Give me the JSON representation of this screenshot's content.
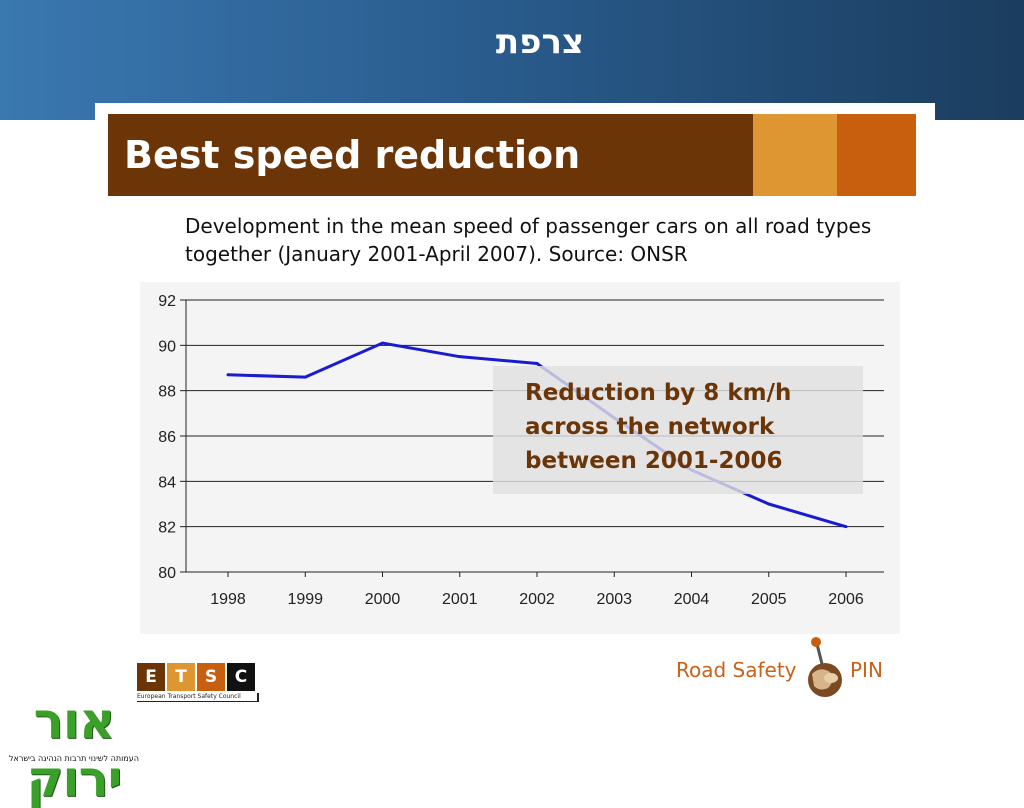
{
  "slide": {
    "title": "צרפת",
    "header": "Best speed reduction",
    "subtitle": "Development in the mean speed of passenger cars on all road types together (January 2001-April 2007). Source: ONSR",
    "annotation_lines": [
      "Reduction by 8 km/h",
      "across the network",
      "between 2001-2006"
    ]
  },
  "colors": {
    "banner": "#2a5d8f",
    "header_bar": "#6b3507",
    "accent_light": "#de9633",
    "accent_dark": "#c85f0f",
    "series_line": "#1a1ad0",
    "annotation_text": "#6b3507"
  },
  "chart_data": {
    "type": "line",
    "title": "",
    "xlabel": "",
    "ylabel": "",
    "categories": [
      "1998",
      "1999",
      "2000",
      "2001",
      "2002",
      "2003",
      "2004",
      "2005",
      "2006"
    ],
    "series": [
      {
        "values": [
          88.7,
          88.6,
          90.1,
          89.5,
          89.2,
          86.8,
          84.5,
          83.0,
          82.0
        ]
      }
    ],
    "yticks": [
      80,
      82,
      84,
      86,
      88,
      90,
      92
    ],
    "ylim": [
      80,
      92
    ],
    "grid": true,
    "legend": "none"
  },
  "logos": {
    "etsc": {
      "letters": [
        "E",
        "T",
        "S",
        "C"
      ],
      "colors": [
        "#6b3507",
        "#de9633",
        "#c85f0f",
        "#111111"
      ],
      "caption": "European Transport Safety Council"
    },
    "road_safety_pin": {
      "left": "Road Safety",
      "right": "PIN"
    },
    "or_yarok": {
      "name": "אור ירוק",
      "caption": "העמותה לשינוי תרבות הנהיגה בישראל"
    }
  }
}
